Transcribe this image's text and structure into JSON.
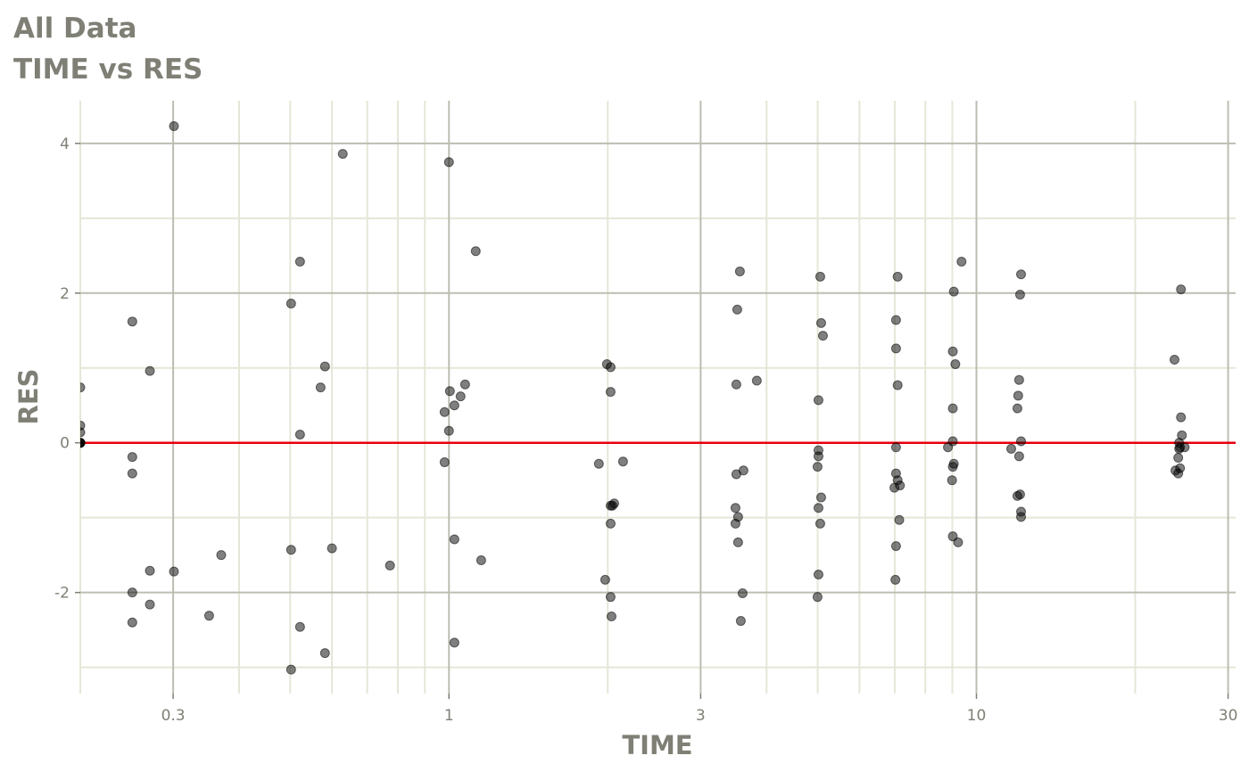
{
  "title": "All Data",
  "subtitle": "TIME vs RES",
  "chart_data": {
    "type": "scatter",
    "title": "All Data",
    "subtitle": "TIME vs RES",
    "xlabel": "TIME",
    "ylabel": "RES",
    "x_scale": "log10",
    "xlim": [
      0.2,
      31
    ],
    "ylim": [
      -3.35,
      4.57
    ],
    "x_ticks": [
      0.3,
      1,
      3,
      10,
      30
    ],
    "x_tick_labels": [
      "0.3",
      "1",
      "3",
      "10",
      "30"
    ],
    "y_ticks": [
      -2,
      0,
      2,
      4
    ],
    "y_tick_labels": [
      "-2",
      "0",
      "2",
      "4"
    ],
    "grid": true,
    "reference_line": {
      "y": 0,
      "color": "#e8000b"
    },
    "point_color": "#000000",
    "point_opacity": 0.5,
    "points": [
      [
        0.2,
        0.74
      ],
      [
        0.2,
        0.23
      ],
      [
        0.2,
        0.14
      ],
      [
        0.2,
        0
      ],
      [
        0.2,
        0
      ],
      [
        0.2,
        0
      ],
      [
        0.2,
        0
      ],
      [
        0.251,
        1.62
      ],
      [
        0.271,
        0.96
      ],
      [
        0.251,
        -0.19
      ],
      [
        0.251,
        -0.41
      ],
      [
        0.251,
        -2.0
      ],
      [
        0.251,
        -2.4
      ],
      [
        0.271,
        -1.71
      ],
      [
        0.271,
        -2.16
      ],
      [
        0.301,
        4.23
      ],
      [
        0.301,
        -1.72
      ],
      [
        0.351,
        -2.31
      ],
      [
        0.37,
        -1.5
      ],
      [
        0.502,
        1.86
      ],
      [
        0.522,
        2.42
      ],
      [
        0.502,
        -1.43
      ],
      [
        0.522,
        0.11
      ],
      [
        0.522,
        -2.46
      ],
      [
        0.502,
        -3.03
      ],
      [
        0.571,
        0.74
      ],
      [
        0.582,
        1.02
      ],
      [
        0.582,
        -2.81
      ],
      [
        0.6,
        -1.41
      ],
      [
        0.629,
        3.86
      ],
      [
        0.773,
        -1.64
      ],
      [
        1.0,
        3.75
      ],
      [
        1.124,
        2.56
      ],
      [
        0.981,
        0.41
      ],
      [
        1.004,
        0.69
      ],
      [
        1.024,
        0.5
      ],
      [
        1.052,
        0.62
      ],
      [
        1.073,
        0.78
      ],
      [
        1.0,
        0.16
      ],
      [
        0.981,
        -0.26
      ],
      [
        1.024,
        -1.29
      ],
      [
        1.024,
        -2.67
      ],
      [
        1.151,
        -1.57
      ],
      [
        1.993,
        1.05
      ],
      [
        2.025,
        1.01
      ],
      [
        2.025,
        0.68
      ],
      [
        1.924,
        -0.28
      ],
      [
        2.025,
        -0.84
      ],
      [
        2.041,
        -0.84
      ],
      [
        2.057,
        -0.81
      ],
      [
        2.025,
        -1.08
      ],
      [
        1.978,
        -1.83
      ],
      [
        2.025,
        -2.06
      ],
      [
        2.033,
        -2.32
      ],
      [
        2.138,
        -0.25
      ],
      [
        3.561,
        2.29
      ],
      [
        3.52,
        1.78
      ],
      [
        3.506,
        0.78
      ],
      [
        3.834,
        0.83
      ],
      [
        3.506,
        -0.42
      ],
      [
        3.617,
        -0.37
      ],
      [
        3.493,
        -0.87
      ],
      [
        3.533,
        -0.99
      ],
      [
        3.493,
        -1.08
      ],
      [
        3.533,
        -1.33
      ],
      [
        3.603,
        -2.01
      ],
      [
        3.575,
        -2.38
      ],
      [
        5.057,
        2.22
      ],
      [
        5.077,
        1.6
      ],
      [
        5.117,
        1.43
      ],
      [
        5.018,
        0.57
      ],
      [
        5.018,
        -0.1
      ],
      [
        5.018,
        -0.18
      ],
      [
        4.998,
        -0.32
      ],
      [
        5.077,
        -0.73
      ],
      [
        5.018,
        -0.87
      ],
      [
        5.057,
        -1.08
      ],
      [
        5.018,
        -1.76
      ],
      [
        4.998,
        -2.06
      ],
      [
        7.09,
        2.22
      ],
      [
        7.04,
        1.64
      ],
      [
        7.04,
        1.26
      ],
      [
        7.09,
        0.77
      ],
      [
        7.04,
        -0.06
      ],
      [
        7.04,
        -0.41
      ],
      [
        7.09,
        -0.5
      ],
      [
        6.99,
        -0.6
      ],
      [
        7.16,
        -0.57
      ],
      [
        7.14,
        -1.03
      ],
      [
        7.04,
        -1.38
      ],
      [
        7.02,
        -1.83
      ],
      [
        9.37,
        2.42
      ],
      [
        9.06,
        2.02
      ],
      [
        9.02,
        1.22
      ],
      [
        9.12,
        1.05
      ],
      [
        9.02,
        0.46
      ],
      [
        9.02,
        0.02
      ],
      [
        8.83,
        -0.06
      ],
      [
        9.06,
        -0.28
      ],
      [
        9.02,
        -0.32
      ],
      [
        8.99,
        -0.5
      ],
      [
        9.02,
        -1.25
      ],
      [
        9.23,
        -1.33
      ],
      [
        12.15,
        2.25
      ],
      [
        12.1,
        1.98
      ],
      [
        12.05,
        0.84
      ],
      [
        12.0,
        0.63
      ],
      [
        11.96,
        0.46
      ],
      [
        12.15,
        0.02
      ],
      [
        11.64,
        -0.08
      ],
      [
        12.05,
        -0.18
      ],
      [
        12.1,
        -0.69
      ],
      [
        11.96,
        -0.71
      ],
      [
        12.15,
        -0.92
      ],
      [
        12.15,
        -0.99
      ],
      [
        24.42,
        2.05
      ],
      [
        23.74,
        1.11
      ],
      [
        24.42,
        0.34
      ],
      [
        24.52,
        0.1
      ],
      [
        24.23,
        0
      ],
      [
        24.32,
        -0.06
      ],
      [
        24.23,
        -0.08
      ],
      [
        24.82,
        -0.06
      ],
      [
        24.13,
        -0.2
      ],
      [
        23.84,
        -0.37
      ],
      [
        24.32,
        -0.34
      ],
      [
        24.13,
        -0.41
      ]
    ]
  }
}
